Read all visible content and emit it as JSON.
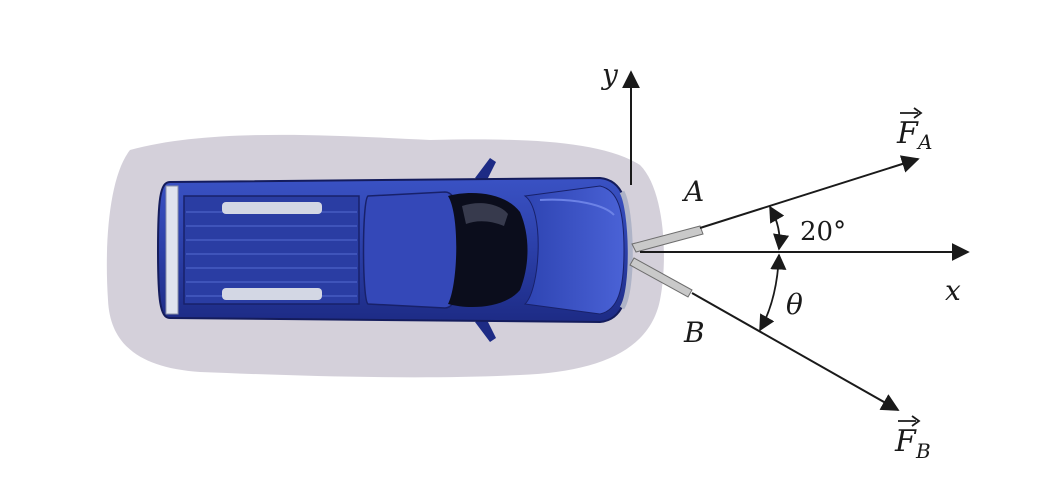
{
  "labels": {
    "y_axis": "y",
    "x_axis": "x",
    "point_a": "A",
    "point_b": "B",
    "force_a_symbol": "F",
    "force_a_subscript": "A",
    "force_b_symbol": "F",
    "force_b_subscript": "B",
    "angle_a": "20°",
    "angle_b": "θ"
  },
  "colors": {
    "truck_body": "#2b3fa8",
    "truck_dark": "#1a2470",
    "shadow": "#cbc6d2",
    "ink": "#1a1a1a"
  }
}
